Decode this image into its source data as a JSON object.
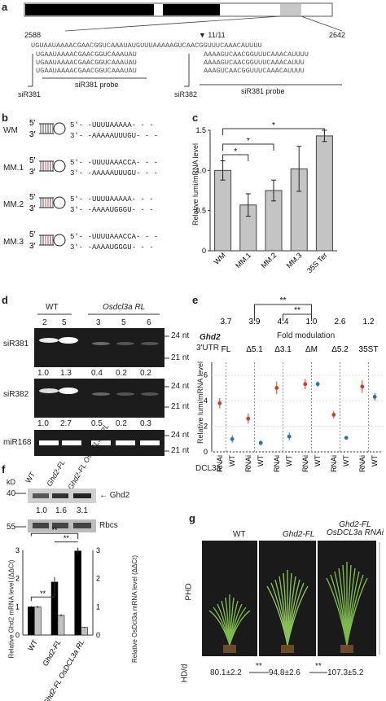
{
  "panel_a": {
    "label": "a",
    "pos_start": "2588",
    "pos_end": "2642",
    "marker": "▼ 11/11",
    "top_seq": "UGUAAUAAAACGAACGGUCAAAUAUGUUUAAAAAGUCAACGGUUUCAAACAUUUU",
    "left_lines": [
      "UGAAUAAAACGAACGGUCAAAUAU",
      "UGAAUAAAACGAACGGUCAAAUAU",
      "UGAAUAAAACGAACGGUCAAAUAU"
    ],
    "right_lines": [
      "AAAAGUCAACGGUUUCAAACAUUUU",
      "AAAAGUCAACGGUUUCAAACAUUU",
      "AAAGUCAACGGUUUCAAACAUUUU"
    ],
    "siR381": "siR381",
    "siR382": "siR382",
    "probe_left": "siR381 probe",
    "probe_right": "siR381 probe"
  },
  "panel_b": {
    "label": "b",
    "rows": [
      {
        "name": "WM",
        "top": "5′- -UUUUAAAAA- - -",
        "bot": "3′- -AAAAAUUUGU- - -"
      },
      {
        "name": "MM.1",
        "top": "5′- -UUUUAAACCA- - -",
        "bot": "3′- -AAAAAUUUGU- - -"
      },
      {
        "name": "MM.2",
        "top": "5′- -UUUUAAAAA- - -",
        "bot": "3′- -AAAAUGGGU- - -"
      },
      {
        "name": "MM.3",
        "top": "5′- -UUUUAAACCA- - -",
        "bot": "3′- -AAAAUGGGU- - -"
      }
    ]
  },
  "panel_c": {
    "label": "c",
    "ylabel": "Relative lumi/mRNA level",
    "stars": [
      "*",
      "*",
      "*"
    ],
    "chart_data": {
      "type": "bar",
      "categories": [
        "WM",
        "MM.1",
        "MM.2",
        "MM.3",
        "35S Ter"
      ],
      "values": [
        1.0,
        0.57,
        0.75,
        1.02,
        1.43
      ],
      "errors": [
        0.12,
        0.14,
        0.13,
        0.28,
        0.07
      ],
      "ylim": [
        0,
        1.5
      ],
      "yticks": [
        "0",
        "0.5",
        "1.0",
        "1.5"
      ],
      "ylabel": "Relative lumi/mRNA level"
    }
  },
  "panel_d": {
    "label": "d",
    "wt": "WT",
    "rl": "Osdcl3a RL",
    "lanes": [
      "2",
      "5",
      "3",
      "5",
      "6"
    ],
    "rows": [
      {
        "name": "siR381",
        "m1": "24 nt",
        "m2": "21 nt",
        "values": [
          "1.0",
          "1.3",
          "0.4",
          "0.2",
          "0.2"
        ]
      },
      {
        "name": "siR382",
        "m1": "24 nt",
        "m2": "21 nt",
        "values": [
          "1.0",
          "2.7",
          "0.5",
          "0.2",
          "0.3"
        ]
      },
      {
        "name": "miR168",
        "m1": "24 nt",
        "m2": "21 nt",
        "values": []
      }
    ]
  },
  "panel_e": {
    "label": "e",
    "fold_values": [
      "3.7",
      "3.9",
      "4.4",
      "1.0",
      "2.6",
      "1.2"
    ],
    "stars": "**",
    "fold_label": "Fold modulation",
    "gene": "Ghd2",
    "utr": "3′UTR",
    "constructs": [
      "FL",
      "Δ5.1",
      "Δ3.1",
      "ΔM",
      "Δ5.2",
      "35ST"
    ],
    "ylabel": "Relative lumi/mRNA level",
    "dcl_label": "DCL3a",
    "x_labels": [
      "RNAi",
      "WT",
      "RNAi",
      "WT",
      "RNAi",
      "WT",
      "RNAi",
      "WT",
      "RNAi",
      "WT",
      "RNAi",
      "WT"
    ],
    "chart_data": {
      "type": "scatter",
      "ylim": [
        0,
        7
      ],
      "yticks": [
        "0",
        "2",
        "4",
        "6"
      ],
      "series": [
        {
          "name": "RNAi",
          "color": "#d23a2a",
          "values": [
            3.8,
            2.6,
            5.0,
            5.3,
            2.9,
            5.1
          ],
          "errors": [
            0.4,
            0.4,
            0.5,
            0.4,
            0.3,
            0.5
          ]
        },
        {
          "name": "WT",
          "color": "#2c6fb5",
          "values": [
            1.0,
            0.7,
            1.2,
            5.3,
            1.1,
            4.3
          ],
          "errors": [
            0.3,
            0.2,
            0.3,
            0.2,
            0.1,
            0.3
          ]
        }
      ]
    }
  },
  "panel_f": {
    "label": "f",
    "kd": "kD",
    "m40": "40",
    "m55": "55",
    "lanes": [
      "WT",
      "Ghd2-FL",
      "Ghd2-FL OsDCL3a RL"
    ],
    "ghd2": "Ghd2",
    "rbcs": "Rbcs",
    "values": [
      "1.0",
      "1.6",
      "3.1"
    ],
    "ylabel_left": "Relative Ghd2 mRNA level (ΔΔCt)",
    "ylabel_right": "Relative OsDcl3a mRNA level (ΔΔCt)",
    "stars": [
      "**",
      "**",
      "**"
    ],
    "chart_data": {
      "type": "bar",
      "categories": [
        "WT",
        "Ghd2-FL",
        "Ghd2-FL OsDCL3a RL"
      ],
      "series": [
        {
          "name": "Ghd2",
          "color": "#000000",
          "values": [
            1.0,
            1.88,
            2.98
          ],
          "errors": [
            0.03,
            0.1,
            0.12
          ]
        },
        {
          "name": "OsDcl3a",
          "color": "#c0c0c0",
          "values": [
            1.0,
            0.7,
            0.27
          ],
          "errors": [
            0.04,
            0.04,
            0.02
          ]
        }
      ],
      "ylim": [
        0,
        3
      ],
      "yticks": [
        "0",
        "1",
        "2",
        "3"
      ]
    }
  },
  "panel_g": {
    "label": "g",
    "titles": [
      "WT",
      "Ghd2-FL",
      "Ghd2-FL OsDCL3a RNAi"
    ],
    "phd": "PHD",
    "hd": "HD/d",
    "values": [
      "80.1±2.2",
      "94.8±2.6",
      "107.3±5.2"
    ],
    "stars": [
      "**",
      "**"
    ]
  }
}
